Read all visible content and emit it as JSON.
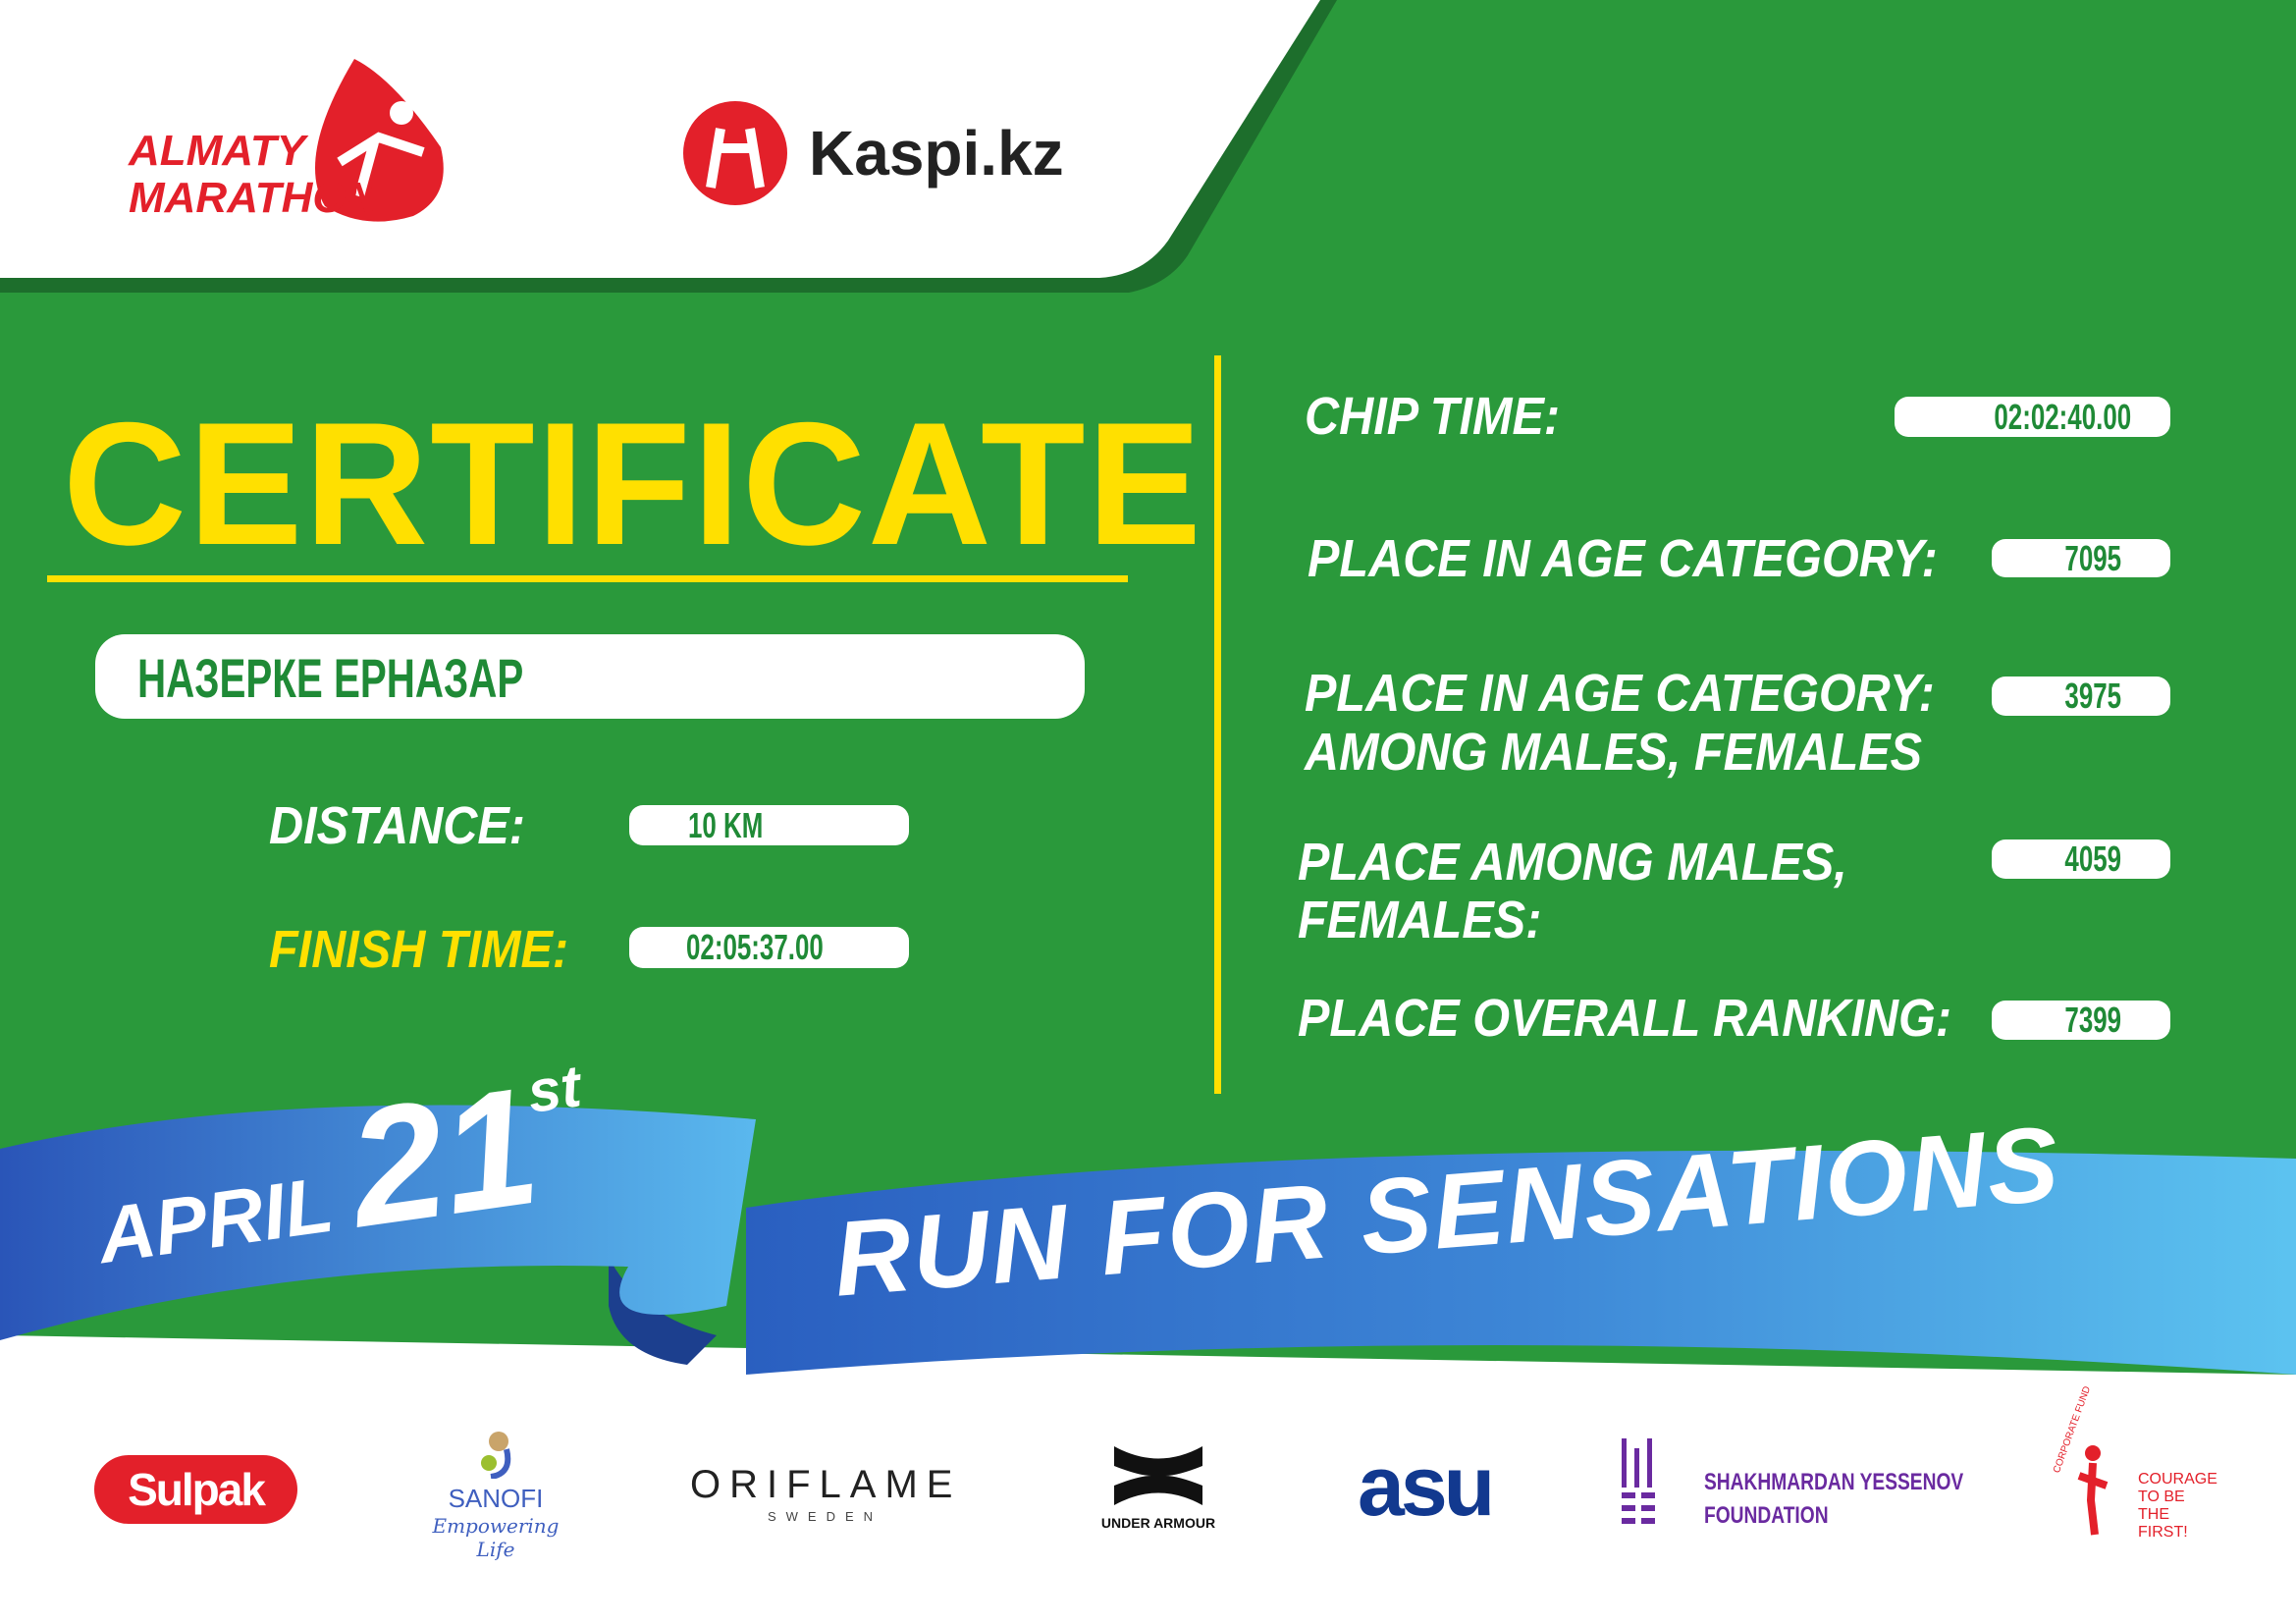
{
  "header": {
    "logo_primary": "ALMATY MARATHON",
    "logo_sponsor": "Kaspi.kz"
  },
  "certificate": {
    "title": "CERTIFICATE",
    "participant_name": "НАЗЕРКЕ ЕРНАЗАР",
    "distance_label": "DISTANCE:",
    "distance_value": "10 KM",
    "finish_time_label": "FINISH TIME:",
    "finish_time_value": "02:05:37.00"
  },
  "results": {
    "chip_time_label": "CHIP TIME:",
    "chip_time_value": "02:02:40.00",
    "age_category_label": "PLACE IN AGE CATEGORY:",
    "age_category_value": "7095",
    "age_category_gender_label_1": "PLACE IN AGE CATEGORY:",
    "age_category_gender_label_2": "AMONG MALES, FEMALES",
    "age_category_gender_value": "3975",
    "gender_label_1": "PLACE AMONG MALES,",
    "gender_label_2": "FEMALES:",
    "gender_value": "4059",
    "overall_label": "PLACE OVERALL RANKING:",
    "overall_value": "7399"
  },
  "banner": {
    "month": "APRIL",
    "day": "21",
    "suffix": "st",
    "slogan": "RUN FOR SENSATIONS"
  },
  "sponsors": [
    "Sulpak",
    "SANOFI",
    "Empowering Life",
    "ORIFLAME",
    "SWEDEN",
    "UNDER ARMOUR",
    "asu",
    "SHAKHMARDAN YESSENOV",
    "FOUNDATION",
    "CORPORATE FUND",
    "COURAGE",
    "TO BE",
    "THE FIRST!"
  ],
  "colors": {
    "green": "#2a993b",
    "yellow": "#ffe000",
    "red": "#e3202a",
    "blue": "#3a7fd0",
    "text_green": "#1f8a36"
  }
}
